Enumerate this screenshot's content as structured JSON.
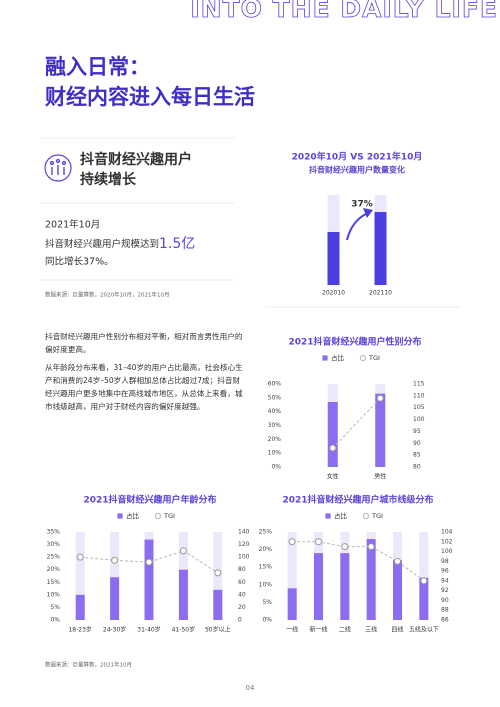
{
  "header": {
    "banner": "INTO THE DAILY LIFE",
    "title_line1": "融入日常：",
    "title_line2": "财经内容进入每日生活"
  },
  "highlight": {
    "title_line1": "抖音财经兴趣用户",
    "title_line2": "持续增长",
    "date": "2021年10月",
    "stat_text": "抖音财经兴趣用户规模达到",
    "stat_value": "1.5亿",
    "growth": "同比增长37%。",
    "source": "数据来源：巨量算数，2020年10月，2021年10月"
  },
  "paragraphs": [
    "抖音财经兴趣用户性别分布相对平衡，相对而言男性用户的偏好度更高。",
    "从年龄段分布来看，31–40岁的用户占比最高，社会核心生产和消费的24岁–50岁人群相加总体占比超过7成；抖音财经兴趣用户更多地集中在高线城市地区，从总体上来看，城市线级越高，用户对于财经内容的偏好度越强。"
  ],
  "chart_data": [
    {
      "type": "bar",
      "title": "2020年10月 VS 2021年10月",
      "subtitle": "抖音财经兴趣用户数量变化",
      "categories": [
        "202010",
        "202110"
      ],
      "values": [
        1.09,
        1.5
      ],
      "color": "#4b3fe0",
      "ylim": [
        0,
        1.85
      ],
      "annotation": "37%"
    },
    {
      "type": "combo",
      "title": "2021抖音财经兴趣用户性别分布",
      "categories": [
        "女性",
        "男性"
      ],
      "series": [
        {
          "name": "占比",
          "color": "#8c6df0",
          "values": [
            47,
            53
          ]
        },
        {
          "name": "TGI",
          "color": "#b8b8b8",
          "axis": "y2",
          "values": [
            88,
            109
          ]
        }
      ],
      "ylim": [
        0,
        60
      ],
      "yticks": [
        {
          "value": 0,
          "label": "0%"
        },
        {
          "value": 10,
          "label": "10%"
        },
        {
          "value": 20,
          "label": "20%"
        },
        {
          "value": 30,
          "label": "30%"
        },
        {
          "value": 40,
          "label": "40%"
        },
        {
          "value": 50,
          "label": "50%"
        },
        {
          "value": 60,
          "label": "60%"
        }
      ],
      "y2lim": [
        80,
        115
      ],
      "y2ticks": [
        80,
        85,
        90,
        95,
        100,
        105,
        110,
        115
      ]
    },
    {
      "type": "combo",
      "title": "2021抖音财经兴趣用户年龄分布",
      "categories": [
        "18-23岁",
        "24-30岁",
        "31-40岁",
        "41-50岁",
        "50岁以上"
      ],
      "series": [
        {
          "name": "占比",
          "color": "#8c6df0",
          "values": [
            10,
            17,
            32,
            20,
            12
          ]
        },
        {
          "name": "TGI",
          "color": "#b8b8b8",
          "axis": "y2",
          "values": [
            100,
            95,
            92,
            110,
            75
          ]
        }
      ],
      "ylim": [
        0,
        35
      ],
      "yticks": [
        {
          "value": 0,
          "label": "0%"
        },
        {
          "value": 5,
          "label": "5%"
        },
        {
          "value": 10,
          "label": "10%"
        },
        {
          "value": 15,
          "label": "15%"
        },
        {
          "value": 20,
          "label": "20%"
        },
        {
          "value": 25,
          "label": "25%"
        },
        {
          "value": 30,
          "label": "30%"
        },
        {
          "value": 35,
          "label": "35%"
        }
      ],
      "y2lim": [
        0,
        140
      ],
      "y2ticks": [
        0,
        20,
        40,
        60,
        80,
        100,
        120,
        140
      ]
    },
    {
      "type": "combo",
      "title": "2021抖音财经兴趣用户城市线级分布",
      "categories": [
        "一线",
        "新一线",
        "二线",
        "三线",
        "四线",
        "五线及以下"
      ],
      "series": [
        {
          "name": "占比",
          "color": "#8c6df0",
          "values": [
            9,
            19,
            19,
            23,
            17,
            12
          ]
        },
        {
          "name": "TGI",
          "color": "#b8b8b8",
          "axis": "y2",
          "values": [
            102,
            102,
            101,
            101,
            98,
            94
          ]
        }
      ],
      "ylim": [
        0,
        25
      ],
      "yticks": [
        {
          "value": 0,
          "label": "0%"
        },
        {
          "value": 5,
          "label": "5%"
        },
        {
          "value": 10,
          "label": "10%"
        },
        {
          "value": 15,
          "label": "15%"
        },
        {
          "value": 20,
          "label": "20%"
        },
        {
          "value": 25,
          "label": "25%"
        }
      ],
      "y2lim": [
        86,
        104
      ],
      "y2ticks": [
        86,
        88,
        90,
        92,
        94,
        96,
        98,
        100,
        102,
        104
      ]
    }
  ],
  "footer": {
    "source": "数据来源：巨量算数，2021年10月",
    "page": "04"
  }
}
